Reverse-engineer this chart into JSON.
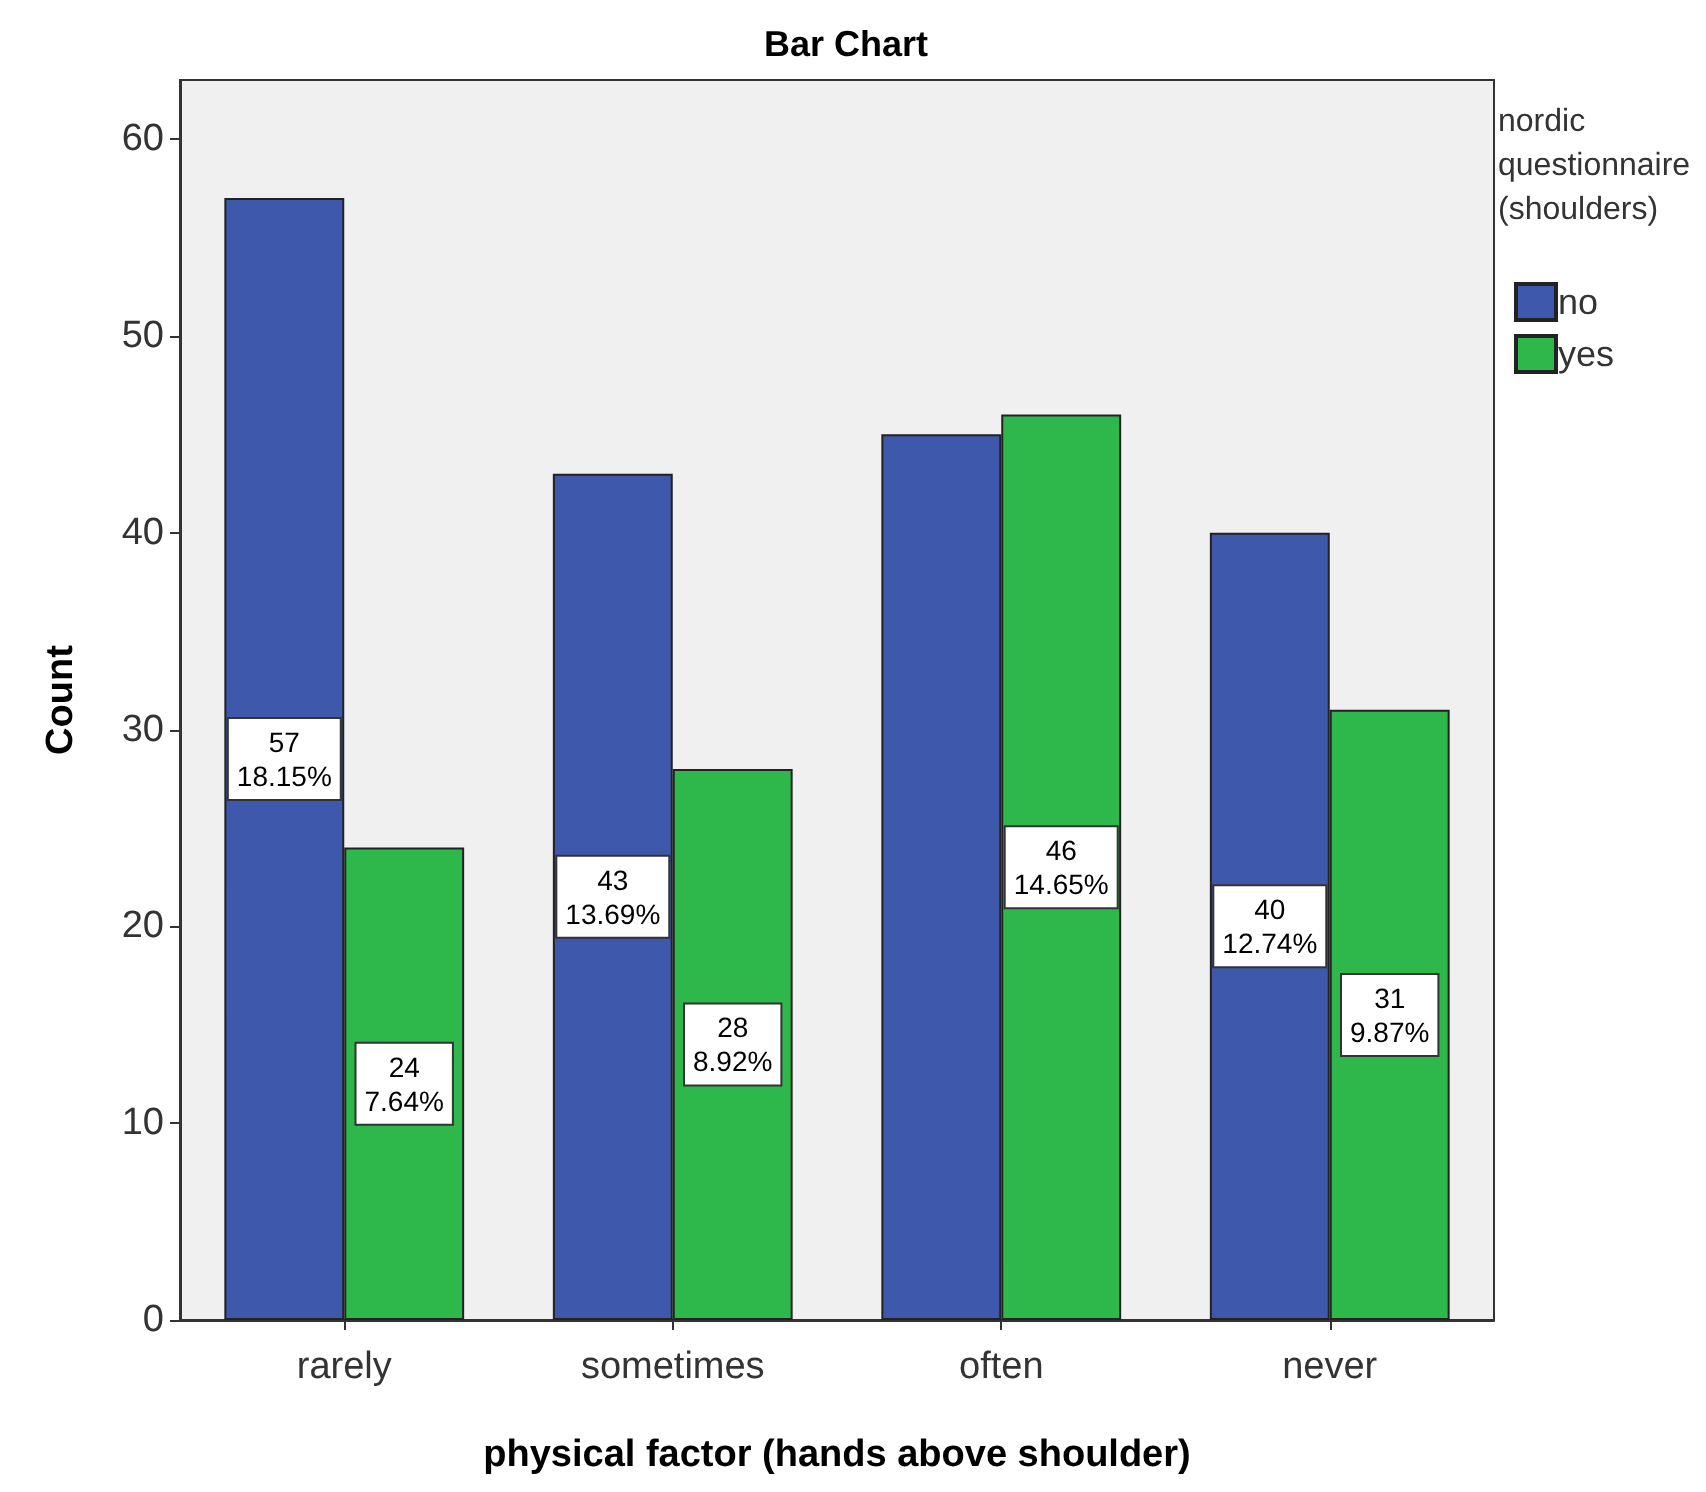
{
  "chart_data": {
    "type": "bar",
    "title": "Bar Chart",
    "xlabel": "physical factor (hands above shoulder)",
    "ylabel": "Count",
    "legend_title": "nordic questionnaire (shoulders)",
    "categories": [
      "rarely",
      "sometimes",
      "often",
      "never"
    ],
    "series": [
      {
        "name": "no",
        "color": "#3e58ac",
        "values": [
          57,
          43,
          45,
          40
        ],
        "value_labels": [
          "57\n18.15%",
          "43\n13.69%",
          null,
          "40\n12.74%"
        ]
      },
      {
        "name": "yes",
        "color": "#2eb84b",
        "values": [
          24,
          28,
          46,
          31
        ],
        "value_labels": [
          "24\n7.64%",
          "28\n8.92%",
          "46\n14.65%",
          "31\n9.87%"
        ]
      }
    ],
    "ylim": [
      0,
      63
    ],
    "yticks": [
      0,
      10,
      20,
      30,
      40,
      50,
      60
    ],
    "grid": false,
    "legend": "top right"
  }
}
